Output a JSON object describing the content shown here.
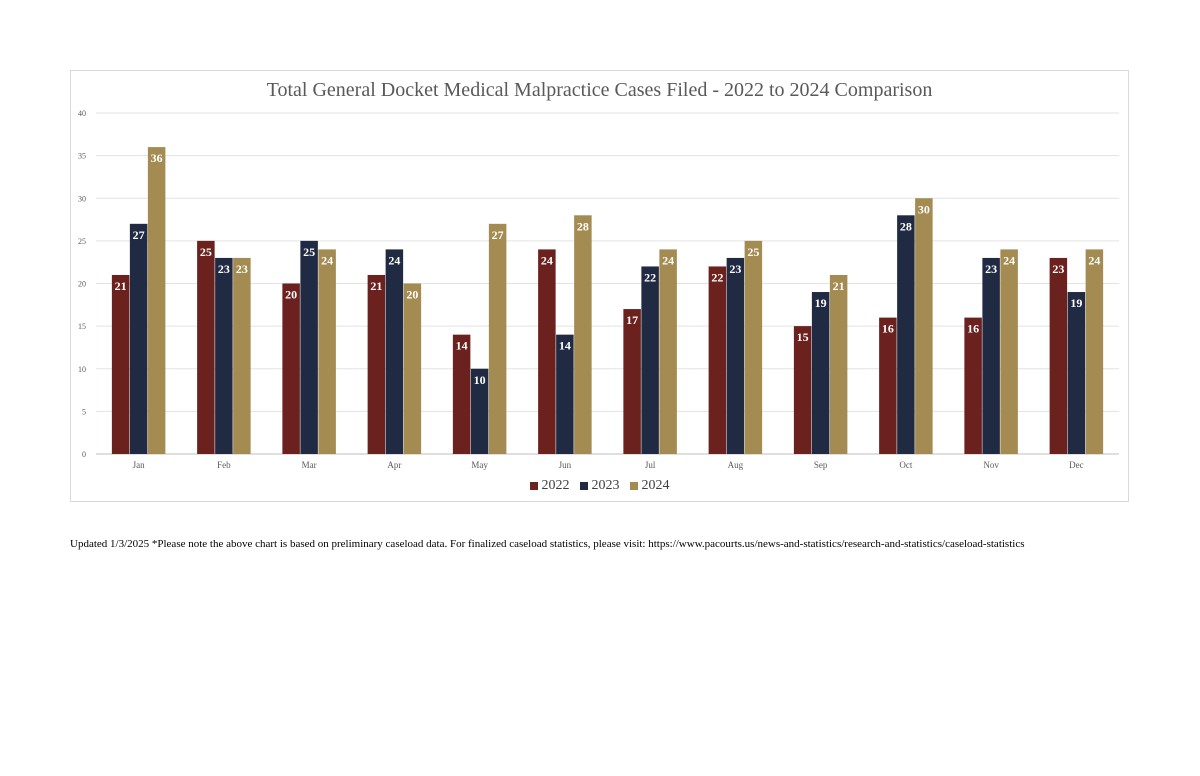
{
  "chart_data": {
    "type": "bar",
    "title": "Total General Docket Medical Malpractice Cases Filed - 2022 to 2024 Comparison",
    "categories": [
      "Jan",
      "Feb",
      "Mar",
      "Apr",
      "May",
      "Jun",
      "Jul",
      "Aug",
      "Sep",
      "Oct",
      "Nov",
      "Dec"
    ],
    "series": [
      {
        "name": "2022",
        "color": "#6b211e",
        "values": [
          21,
          25,
          20,
          21,
          14,
          24,
          17,
          22,
          15,
          16,
          16,
          23
        ]
      },
      {
        "name": "2023",
        "color": "#212a43",
        "values": [
          27,
          23,
          25,
          24,
          10,
          14,
          22,
          23,
          19,
          28,
          23,
          19
        ]
      },
      {
        "name": "2024",
        "color": "#a38b52",
        "values": [
          36,
          23,
          24,
          20,
          27,
          28,
          24,
          25,
          21,
          30,
          24,
          24
        ]
      }
    ],
    "ylim": [
      0,
      40
    ],
    "yticks": [
      0,
      5,
      10,
      15,
      20,
      25,
      30,
      35,
      40
    ],
    "grid": true,
    "legend_position": "bottom",
    "data_labels": true
  },
  "footnote": "Updated 1/3/2025  *Please note the above chart is based on preliminary caseload data.  For finalized caseload statistics, please visit: https://www.pacourts.us/news-and-statistics/research-and-statistics/caseload-statistics"
}
